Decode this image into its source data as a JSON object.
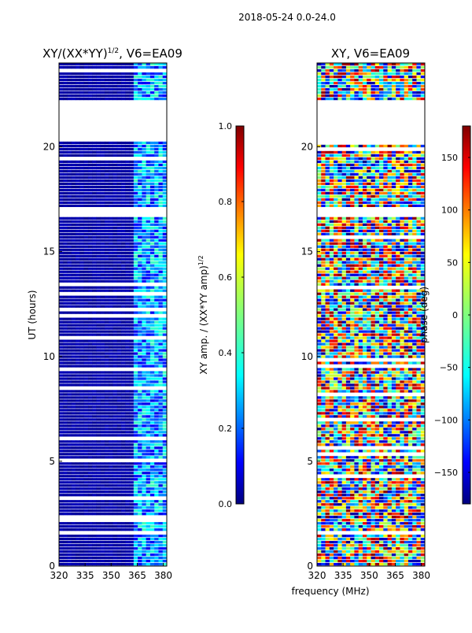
{
  "figure_title": "2018-05-24 0.0-24.0",
  "shared_xlabel": "frequency (MHz)",
  "chart_data": [
    {
      "type": "heatmap",
      "title": "XY/(XX*YY)^1/2, V6=EA09",
      "title_main": "XY/(XX*YY)",
      "title_sup": "1/2",
      "title_tail": ", V6=EA09",
      "xlabel": "frequency (MHz)",
      "ylabel": "UT (hours)",
      "xlim": [
        320,
        382
      ],
      "ylim": [
        0,
        24
      ],
      "xticks": [
        320,
        335,
        350,
        365,
        380
      ],
      "yticks": [
        0,
        5,
        10,
        15,
        20
      ],
      "colorbar": {
        "label": "XY amp. / (XX*YY amp)^1/2",
        "label_main": "XY amp. / (XX*YY amp)",
        "label_sup": "1/2",
        "range": [
          0.0,
          1.0
        ],
        "ticks": [
          "0.0",
          "0.2",
          "0.4",
          "0.6",
          "0.8",
          "1.0"
        ],
        "colormap": "jet"
      },
      "blank_bands_hours": [
        [
          1.5,
          1.7
        ],
        [
          16.6,
          17.1
        ],
        [
          20.3,
          22.2
        ]
      ]
    },
    {
      "type": "heatmap",
      "title": "XY, V6=EA09",
      "xlabel": "frequency (MHz)",
      "ylabel": "",
      "xlim": [
        320,
        382
      ],
      "ylim": [
        0,
        24
      ],
      "xticks": [
        320,
        335,
        350,
        365,
        380
      ],
      "yticks": [
        0,
        5,
        10,
        15,
        20
      ],
      "colorbar": {
        "label": "phase (deg)",
        "range": [
          -180,
          180
        ],
        "ticks": [
          "-150",
          "-100",
          "-50",
          "0",
          "50",
          "100",
          "150"
        ],
        "colormap": "jet"
      },
      "blank_bands_hours": [
        [
          16.6,
          17.1
        ],
        [
          20.3,
          22.2
        ]
      ]
    }
  ],
  "colors": {
    "jet": [
      "#00007f",
      "#0000ff",
      "#007fff",
      "#00ffff",
      "#7fff7f",
      "#ffff00",
      "#ff7f00",
      "#ff0000",
      "#7f0000"
    ],
    "background": "#ffffff",
    "axis": "#000000"
  }
}
